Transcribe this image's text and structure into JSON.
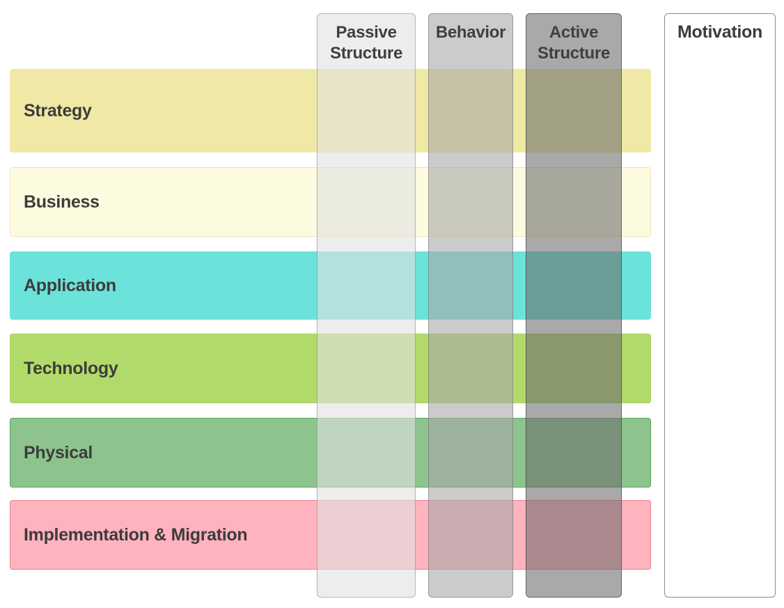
{
  "text_color": "#3C3C3C",
  "background": "#FFFFFF",
  "layers": [
    {
      "label": "Strategy",
      "fill": "#EFE9A5",
      "border": "#EFE9A5"
    },
    {
      "label": "Business",
      "fill": "#FDFBDF",
      "border": "#F0E2B8"
    },
    {
      "label": "Application",
      "fill": "#6BE3DA",
      "border": "#6BE3DA"
    },
    {
      "label": "Technology",
      "fill": "#B2DA6B",
      "border": "#A8D05F"
    },
    {
      "label": "Physical",
      "fill": "#8DC48D",
      "border": "#57A25B"
    },
    {
      "label": "Implementation & Migration",
      "fill": "#FFB3BF",
      "border": "#E9838F"
    }
  ],
  "aspects": [
    {
      "label": "Passive Structure",
      "fill": "rgba(225,225,225,0.60)",
      "border": "rgba(110,110,110,0.45)"
    },
    {
      "label": "Behavior",
      "fill": "rgba(168,168,168,0.60)",
      "border": "rgba(110,110,110,0.55)"
    },
    {
      "label": "Active Structure",
      "fill": "rgba(106,106,106,0.58)",
      "border": "rgba(70,70,70,0.70)"
    }
  ],
  "motivation": {
    "label": "Motivation",
    "fill": "#FFFFFF",
    "border": "#8C8C8C"
  }
}
